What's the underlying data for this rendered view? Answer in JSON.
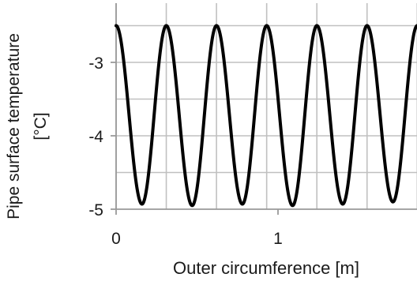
{
  "chart_data": {
    "type": "line",
    "title": "",
    "xlabel": "Outer circumference [m]",
    "ylabel_line1": "Pipe surface temperature",
    "ylabel_line2": "[°C]",
    "x_ticks": [
      "0",
      "1"
    ],
    "y_ticks": [
      "-3",
      "-4",
      "-5"
    ],
    "xlim": [
      0,
      1.9
    ],
    "ylim": [
      -5.0,
      -2.45
    ],
    "grid": true,
    "legend": "none",
    "series": [
      {
        "x": [
          0.0,
          0.16,
          0.31,
          0.47,
          0.62,
          0.78,
          0.93,
          1.09,
          1.24,
          1.4,
          1.55,
          1.71,
          1.86
        ],
        "values": [
          -2.5,
          -4.93,
          -2.5,
          -4.95,
          -2.5,
          -4.93,
          -2.5,
          -4.95,
          -2.5,
          -4.93,
          -2.5,
          -4.9,
          -2.5
        ]
      }
    ],
    "colors": {
      "line": "#000000",
      "grid": "#c0c0c0",
      "axis": "#9a9a9a"
    }
  }
}
